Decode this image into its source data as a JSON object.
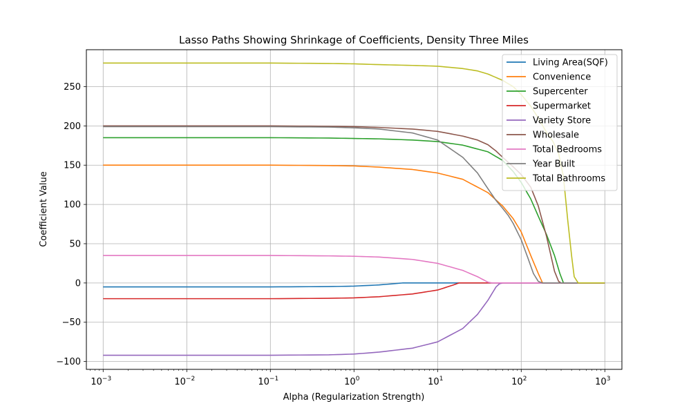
{
  "chart_data": {
    "type": "line",
    "title": "Lasso Paths Showing Shrinkage of Coefficients, Density Three Miles",
    "xlabel": "Alpha (Regularization Strength)",
    "ylabel": "Coefficient Value",
    "x_scale": "log",
    "xlim": [
      0.00063,
      1600
    ],
    "ylim": [
      -110,
      297
    ],
    "grid": true,
    "legend_position": "top-right",
    "x_ticks": [
      {
        "value": 0.001,
        "base": "10",
        "exp": "−3"
      },
      {
        "value": 0.01,
        "base": "10",
        "exp": "−2"
      },
      {
        "value": 0.1,
        "base": "10",
        "exp": "−1"
      },
      {
        "value": 1,
        "base": "10",
        "exp": "0"
      },
      {
        "value": 10,
        "base": "10",
        "exp": "1"
      },
      {
        "value": 100,
        "base": "10",
        "exp": "2"
      },
      {
        "value": 1000,
        "base": "10",
        "exp": "3"
      }
    ],
    "y_ticks": [
      {
        "value": -100,
        "label": "−100"
      },
      {
        "value": -50,
        "label": "−50"
      },
      {
        "value": 0,
        "label": "0"
      },
      {
        "value": 50,
        "label": "50"
      },
      {
        "value": 100,
        "label": "100"
      },
      {
        "value": 150,
        "label": "150"
      },
      {
        "value": 200,
        "label": "200"
      },
      {
        "value": 250,
        "label": "250"
      }
    ],
    "series": [
      {
        "name": "Living Area(SQF)",
        "color": "#1f77b4",
        "x": [
          0.001,
          0.01,
          0.1,
          0.5,
          1,
          2,
          3.8,
          10,
          100,
          1000
        ],
        "y": [
          -5,
          -5,
          -5,
          -4.6,
          -4,
          -2.5,
          0,
          0,
          0,
          0
        ]
      },
      {
        "name": "Convenience",
        "color": "#ff7f0e",
        "x": [
          0.001,
          0.01,
          0.1,
          0.5,
          1,
          2,
          5,
          10,
          20,
          40,
          60,
          80,
          100,
          130,
          160,
          180,
          1000
        ],
        "y": [
          150,
          150,
          150,
          149.5,
          149,
          147.5,
          144.5,
          140,
          132,
          115,
          98,
          82,
          65,
          35,
          12,
          0,
          0
        ]
      },
      {
        "name": "Supercenter",
        "color": "#2ca02c",
        "x": [
          0.001,
          0.01,
          0.1,
          0.5,
          1,
          2,
          5,
          10,
          20,
          40,
          60,
          80,
          100,
          130,
          160,
          200,
          250,
          290,
          320,
          1000
        ],
        "y": [
          185,
          185,
          185,
          184.5,
          184,
          183.5,
          182,
          180,
          175.5,
          167,
          156,
          142,
          128,
          107,
          85,
          62,
          35,
          12,
          0,
          0
        ]
      },
      {
        "name": "Supermarket",
        "color": "#d62728",
        "x": [
          0.001,
          0.01,
          0.1,
          0.5,
          1,
          2,
          5,
          10,
          15,
          18,
          20,
          1000
        ],
        "y": [
          -20,
          -20,
          -20,
          -19.5,
          -19,
          -17.5,
          -14,
          -9,
          -3,
          0,
          0,
          0
        ]
      },
      {
        "name": "Variety Store",
        "color": "#9467bd",
        "x": [
          0.001,
          0.01,
          0.1,
          0.5,
          1,
          2,
          5,
          10,
          20,
          30,
          40,
          50,
          55,
          60,
          1000
        ],
        "y": [
          -92,
          -92,
          -92,
          -91.5,
          -90.5,
          -88,
          -83,
          -75,
          -58,
          -40,
          -22,
          -5,
          -1,
          0,
          0
        ]
      },
      {
        "name": "Wholesale",
        "color": "#8c564b",
        "x": [
          0.001,
          0.01,
          0.1,
          0.5,
          1,
          2,
          5,
          10,
          20,
          30,
          40,
          50,
          60,
          80,
          100,
          130,
          160,
          200,
          250,
          280,
          300,
          1000
        ],
        "y": [
          200,
          200,
          200,
          199.5,
          199,
          198,
          196,
          193,
          187,
          182,
          176,
          168,
          160,
          148,
          138,
          122,
          98,
          60,
          15,
          2,
          0,
          0
        ]
      },
      {
        "name": "Total Bedrooms",
        "color": "#e377c2",
        "x": [
          0.001,
          0.01,
          0.1,
          0.5,
          1,
          2,
          5,
          10,
          20,
          30,
          40,
          45,
          1000
        ],
        "y": [
          35,
          35,
          35,
          34.5,
          34,
          33,
          30,
          25,
          16,
          8,
          1,
          0,
          0
        ]
      },
      {
        "name": "Year Built",
        "color": "#7f7f7f",
        "x": [
          0.001,
          0.01,
          0.1,
          0.5,
          1,
          2,
          5,
          10,
          20,
          30,
          40,
          50,
          60,
          70,
          80,
          100,
          120,
          140,
          160,
          180,
          1000
        ],
        "y": [
          199,
          199,
          199,
          198.5,
          197.5,
          196,
          191,
          182,
          160,
          140,
          120,
          105,
          95,
          86,
          76,
          55,
          32,
          12,
          2,
          0,
          0
        ]
      },
      {
        "name": "Total Bathrooms",
        "color": "#bcbd22",
        "x": [
          0.001,
          0.01,
          0.1,
          0.5,
          1,
          2,
          5,
          10,
          20,
          30,
          40,
          60,
          80,
          100,
          130,
          160,
          200,
          240,
          280,
          320,
          360,
          400,
          430,
          480,
          1000
        ],
        "y": [
          280,
          280,
          280,
          279.5,
          279,
          278,
          277,
          276,
          273,
          270,
          266,
          258,
          250,
          240,
          225,
          210,
          192,
          180,
          165,
          135,
          80,
          35,
          8,
          0,
          0
        ]
      }
    ]
  }
}
